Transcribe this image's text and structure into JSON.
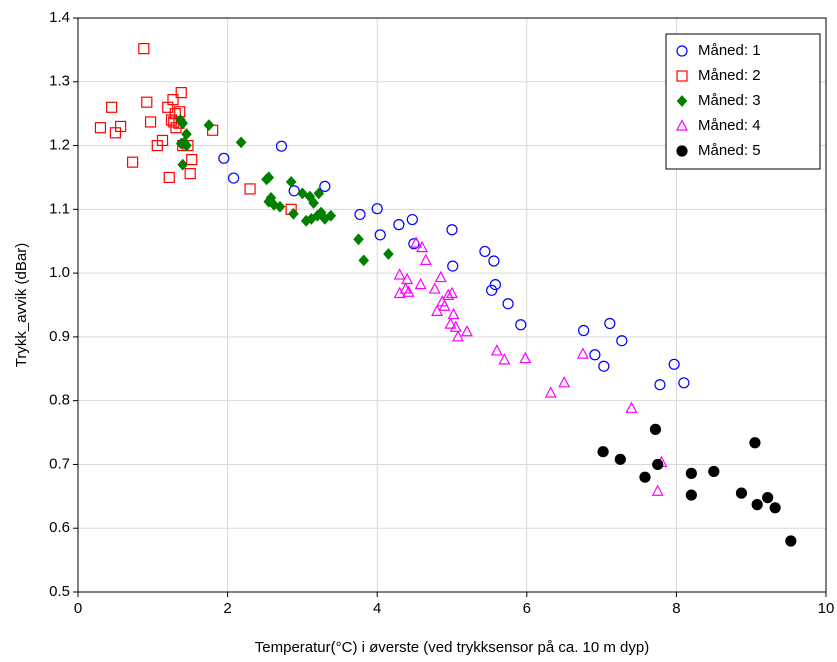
{
  "chart_data": {
    "type": "scatter",
    "x_label": "Temperatur(°C)  i øverste (ved trykksensor på ca. 10 m dyp)",
    "y_label": "Trykk_avvik (dBar)",
    "xlim": [
      0,
      10
    ],
    "xticks": [
      0,
      2,
      4,
      6,
      8,
      10
    ],
    "ylim": [
      0.5,
      1.4
    ],
    "yticks": [
      0.5,
      0.6,
      0.7,
      0.8,
      0.9,
      {
        "value": 1,
        "label": "1.0"
      },
      1.1,
      1.2,
      1.3,
      1.4
    ],
    "grid": true,
    "legend": "upper-right",
    "series": [
      {
        "name": "Måned: 1",
        "color": "#0000ff",
        "marker": "circle",
        "filled": false,
        "x": [
          1.95,
          2.08,
          2.72,
          2.89,
          3.3,
          3.77,
          4.0,
          4.04,
          4.29,
          4.47,
          4.49,
          5.0,
          5.01,
          5.44,
          5.53,
          5.56,
          5.58,
          5.75,
          5.92,
          6.76,
          6.91,
          7.03,
          7.11,
          7.27,
          7.78,
          7.97,
          8.1
        ],
        "values": [
          1.18,
          1.149,
          1.199,
          1.129,
          1.136,
          1.092,
          1.101,
          1.06,
          1.076,
          1.084,
          1.046,
          1.068,
          1.011,
          1.034,
          0.973,
          1.019,
          0.982,
          0.952,
          0.919,
          0.91,
          0.872,
          0.854,
          0.921,
          0.894,
          0.825,
          0.857,
          0.828
        ]
      },
      {
        "name": "Måned: 2",
        "color": "#ff0000",
        "marker": "square",
        "filled": false,
        "x": [
          0.3,
          0.45,
          0.5,
          0.57,
          0.73,
          0.88,
          0.92,
          0.97,
          1.06,
          1.13,
          1.2,
          1.22,
          1.25,
          1.27,
          1.28,
          1.3,
          1.31,
          1.35,
          1.36,
          1.38,
          1.4,
          1.47,
          1.5,
          1.52,
          1.8,
          2.3,
          2.85
        ],
        "values": [
          1.228,
          1.26,
          1.22,
          1.23,
          1.174,
          1.352,
          1.268,
          1.237,
          1.2,
          1.208,
          1.26,
          1.15,
          1.24,
          1.272,
          1.237,
          1.25,
          1.228,
          1.235,
          1.253,
          1.283,
          1.2,
          1.2,
          1.156,
          1.178,
          1.224,
          1.132,
          1.1
        ]
      },
      {
        "name": "Måned: 3",
        "color": "#007f00",
        "marker": "diamond",
        "filled": true,
        "x": [
          1.37,
          1.4,
          1.38,
          1.4,
          1.45,
          1.45,
          1.42,
          1.75,
          2.18,
          2.52,
          2.55,
          2.55,
          2.58,
          2.62,
          2.7,
          2.85,
          2.88,
          3.0,
          3.05,
          3.1,
          3.12,
          3.15,
          3.2,
          3.22,
          3.25,
          3.3,
          3.38,
          3.75,
          3.82,
          4.15
        ],
        "values": [
          1.24,
          1.235,
          1.203,
          1.17,
          1.218,
          1.2,
          1.205,
          1.232,
          1.205,
          1.147,
          1.15,
          1.112,
          1.118,
          1.107,
          1.104,
          1.143,
          1.093,
          1.125,
          1.082,
          1.12,
          1.085,
          1.11,
          1.09,
          1.125,
          1.095,
          1.085,
          1.09,
          1.053,
          1.02,
          1.03
        ]
      },
      {
        "name": "Måned: 4",
        "color": "#ff00ff",
        "marker": "triangle",
        "filled": false,
        "x": [
          4.3,
          4.3,
          4.38,
          4.4,
          4.42,
          4.52,
          4.58,
          4.6,
          4.65,
          4.77,
          4.8,
          4.85,
          4.87,
          4.9,
          4.95,
          4.98,
          5.0,
          5.02,
          5.05,
          5.08,
          5.2,
          5.6,
          5.7,
          5.98,
          6.32,
          6.5,
          6.75,
          7.4,
          7.75,
          7.8
        ],
        "values": [
          0.997,
          0.968,
          0.975,
          0.99,
          0.97,
          1.047,
          0.982,
          1.04,
          1.02,
          0.975,
          0.94,
          0.993,
          0.955,
          0.948,
          0.965,
          0.92,
          0.968,
          0.935,
          0.915,
          0.9,
          0.908,
          0.878,
          0.864,
          0.866,
          0.812,
          0.828,
          0.873,
          0.788,
          0.658,
          0.703
        ]
      },
      {
        "name": "Måned: 5",
        "color": "#000000",
        "marker": "circle",
        "filled": true,
        "x": [
          7.02,
          7.25,
          7.58,
          7.72,
          7.75,
          8.2,
          8.2,
          8.5,
          8.87,
          9.05,
          9.08,
          9.22,
          9.32,
          9.53
        ],
        "values": [
          0.72,
          0.708,
          0.68,
          0.755,
          0.7,
          0.686,
          0.652,
          0.689,
          0.655,
          0.734,
          0.637,
          0.648,
          0.632,
          0.58
        ]
      }
    ]
  }
}
